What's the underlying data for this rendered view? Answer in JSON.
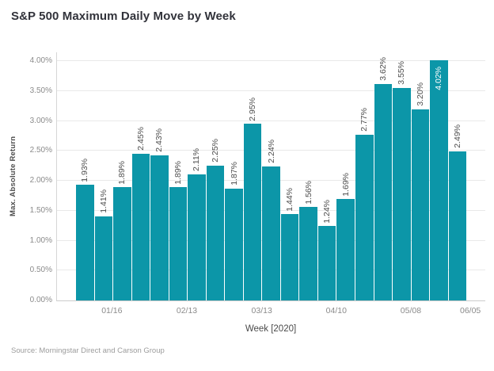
{
  "title": "S&P 500 Maximum Daily Move by Week",
  "source": "Source: Morningstar Direct and Carson Group",
  "chart_data": {
    "type": "bar",
    "title": "S&P 500 Maximum Daily Move by Week",
    "xlabel": "Week [2020]",
    "ylabel": "Max. Absolute Return",
    "bar_color": "#0c96a8",
    "grid": true,
    "legend": "none",
    "ylim": [
      0,
      4.148
    ],
    "y_tick_step": 0.5,
    "bars": [
      {
        "label": "1.93%",
        "value": 1.93
      },
      {
        "label": "1.41%",
        "value": 1.41
      },
      {
        "label": "1.89%",
        "value": 1.89
      },
      {
        "label": "2.45%",
        "value": 2.45
      },
      {
        "label": "2.43%",
        "value": 2.43
      },
      {
        "label": "1.89%",
        "value": 1.89
      },
      {
        "label": "2.11%",
        "value": 2.11
      },
      {
        "label": "2.25%",
        "value": 2.25
      },
      {
        "label": "1.87%",
        "value": 1.87
      },
      {
        "label": "2.95%",
        "value": 2.95
      },
      {
        "label": "2.24%",
        "value": 2.24
      },
      {
        "label": "1.44%",
        "value": 1.44
      },
      {
        "label": "1.56%",
        "value": 1.56
      },
      {
        "label": "1.24%",
        "value": 1.24
      },
      {
        "label": "1.69%",
        "value": 1.69
      },
      {
        "label": "2.77%",
        "value": 2.77
      },
      {
        "label": "3.62%",
        "value": 3.62
      },
      {
        "label": "3.55%",
        "value": 3.55
      },
      {
        "label": "3.20%",
        "value": 3.2
      },
      {
        "label": "4.02%",
        "value": 4.02
      },
      {
        "label": "2.49%",
        "value": 2.49
      }
    ],
    "inside_label_index": 19,
    "x_ticks": [
      {
        "label": "01/16",
        "pos_pct": 13.0
      },
      {
        "label": "02/13",
        "pos_pct": 30.5
      },
      {
        "label": "03/13",
        "pos_pct": 48.0
      },
      {
        "label": "04/10",
        "pos_pct": 65.4
      },
      {
        "label": "05/08",
        "pos_pct": 82.8
      },
      {
        "label": "06/05",
        "pos_pct": 96.7
      }
    ],
    "y_ticks": [
      {
        "label": "0.00%",
        "value": 0
      },
      {
        "label": "0.50%",
        "value": 0.5
      },
      {
        "label": "1.00%",
        "value": 1
      },
      {
        "label": "1.50%",
        "value": 1.5
      },
      {
        "label": "2.00%",
        "value": 2
      },
      {
        "label": "2.50%",
        "value": 2.5
      },
      {
        "label": "3.00%",
        "value": 3
      },
      {
        "label": "3.50%",
        "value": 3.5
      },
      {
        "label": "4.00%",
        "value": 4
      }
    ]
  }
}
